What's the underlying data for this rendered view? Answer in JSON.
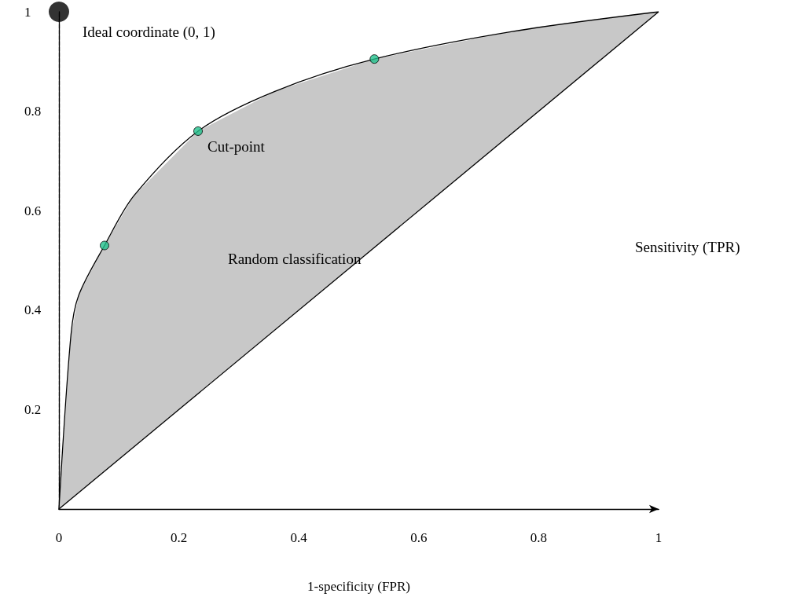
{
  "chart_data": {
    "type": "line",
    "xlabel": "1-specificity (FPR)",
    "ylabel": "Sensitivity (TPR)",
    "xlim": [
      0,
      1
    ],
    "ylim": [
      0,
      1
    ],
    "xticks": [
      0,
      0.2,
      0.4,
      0.6,
      0.8,
      1
    ],
    "yticks": [
      0.2,
      0.4,
      0.6,
      0.8,
      1
    ],
    "series": [
      {
        "color": "#000000",
        "marker": "none",
        "x": [
          0,
          0.02,
          0.033,
          0.076,
          0.125,
          0.232,
          0.36,
          0.526,
          0.754,
          1
        ],
        "values": [
          0,
          0.35,
          0.43,
          0.53,
          0.63,
          0.76,
          0.84,
          0.905,
          0.96,
          1
        ],
        "lower": [
          0,
          0.02,
          0.033,
          0.076,
          0.125,
          0.232,
          0.36,
          0.526,
          0.754,
          1
        ],
        "upper": [
          0,
          0.35,
          0.43,
          0.53,
          0.63,
          0.76,
          0.84,
          0.905,
          0.96,
          1
        ]
      },
      {
        "color": "#000000",
        "marker": "none",
        "x": [
          0,
          1
        ],
        "values": [
          0,
          1
        ]
      },
      {
        "type": "scatter",
        "color": "#22c08c",
        "marker": "circle",
        "x": [
          0.076,
          0.232,
          0.526
        ],
        "values": [
          0.53,
          0.76,
          0.905
        ]
      },
      {
        "type": "scatter",
        "color": "#000000",
        "marker": "circle",
        "x": [
          0
        ],
        "values": [
          1
        ]
      }
    ],
    "annotations": [
      {
        "text": "Ideal coordinate (0, 1)",
        "x": 0,
        "y": 1
      },
      {
        "text": "Cut-point",
        "x": 0.232,
        "y": 0.76
      },
      "Random classification"
    ],
    "grid": false
  }
}
